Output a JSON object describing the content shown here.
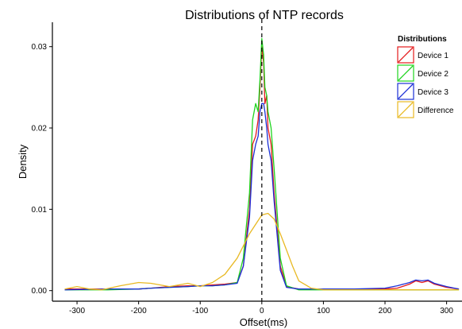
{
  "chart_data": {
    "type": "line",
    "title": "Distributions of NTP records",
    "xlabel": "Offset(ms)",
    "ylabel": "Density",
    "xlim": [
      -340,
      325
    ],
    "ylim": [
      -0.0013,
      0.033
    ],
    "x_ticks": [
      -300,
      -200,
      -100,
      0,
      100,
      200,
      300
    ],
    "y_ticks": [
      0.0,
      0.01,
      0.02,
      0.03
    ],
    "x_tick_labels": [
      "-300",
      "-200",
      "-100",
      "0",
      "100",
      "200",
      "300"
    ],
    "y_tick_labels": [
      "0.00",
      "0.01",
      "0.02",
      "0.03"
    ],
    "grid": false,
    "legend_position": "top-right",
    "legend_title": "Distributions",
    "reference_line": {
      "x": 0,
      "style": "dashed"
    },
    "series": [
      {
        "name": "Device 1",
        "color": "#e41a1c",
        "x": [
          -320,
          -250,
          -200,
          -180,
          -150,
          -120,
          -100,
          -80,
          -60,
          -40,
          -30,
          -20,
          -15,
          -10,
          -6,
          -3,
          0,
          3,
          5,
          8,
          10,
          15,
          20,
          30,
          40,
          60,
          100,
          150,
          200,
          220,
          240,
          250,
          260,
          270,
          280,
          300,
          320
        ],
        "y": [
          0.0002,
          0.0002,
          0.0002,
          0.0003,
          0.0005,
          0.0006,
          0.0006,
          0.0007,
          0.0008,
          0.001,
          0.003,
          0.01,
          0.018,
          0.019,
          0.021,
          0.025,
          0.03,
          0.028,
          0.023,
          0.024,
          0.02,
          0.018,
          0.012,
          0.003,
          0.0005,
          0.0002,
          0.0002,
          0.0002,
          0.0002,
          0.0003,
          0.0008,
          0.0012,
          0.001,
          0.0012,
          0.0008,
          0.0004,
          0.0002
        ]
      },
      {
        "name": "Device 2",
        "color": "#1ed41e",
        "x": [
          -320,
          -250,
          -200,
          -180,
          -150,
          -120,
          -100,
          -80,
          -60,
          -40,
          -30,
          -20,
          -15,
          -10,
          -6,
          -3,
          0,
          3,
          5,
          8,
          10,
          15,
          20,
          30,
          40,
          60,
          100,
          150,
          200,
          220,
          240,
          250,
          260,
          270,
          280,
          300,
          320
        ],
        "y": [
          0.0001,
          0.0001,
          0.0002,
          0.0003,
          0.0004,
          0.0005,
          0.0006,
          0.0006,
          0.0007,
          0.001,
          0.004,
          0.012,
          0.021,
          0.023,
          0.022,
          0.026,
          0.031,
          0.029,
          0.025,
          0.024,
          0.022,
          0.02,
          0.015,
          0.004,
          0.0006,
          0.0001,
          0.0001,
          0.0001,
          0.0001,
          0.0001,
          0.0001,
          0.0001,
          0.0001,
          0.0001,
          0.0001,
          0.0001,
          0.0001
        ]
      },
      {
        "name": "Device 3",
        "color": "#1c2fd6",
        "x": [
          -320,
          -250,
          -200,
          -180,
          -150,
          -120,
          -100,
          -80,
          -60,
          -40,
          -30,
          -20,
          -15,
          -10,
          -6,
          -3,
          0,
          3,
          5,
          8,
          10,
          15,
          20,
          30,
          40,
          60,
          100,
          150,
          200,
          220,
          240,
          250,
          260,
          270,
          280,
          300,
          320
        ],
        "y": [
          0.0001,
          0.0002,
          0.0002,
          0.0003,
          0.0004,
          0.0005,
          0.0006,
          0.0006,
          0.0007,
          0.0009,
          0.003,
          0.009,
          0.016,
          0.018,
          0.019,
          0.022,
          0.023,
          0.023,
          0.022,
          0.02,
          0.018,
          0.016,
          0.011,
          0.0025,
          0.0004,
          0.0002,
          0.0002,
          0.0002,
          0.0003,
          0.0006,
          0.001,
          0.0013,
          0.0012,
          0.0013,
          0.0009,
          0.0005,
          0.0002
        ]
      },
      {
        "name": "Difference",
        "color": "#e8b923",
        "x": [
          -320,
          -300,
          -280,
          -260,
          -230,
          -200,
          -180,
          -150,
          -120,
          -100,
          -80,
          -60,
          -40,
          -20,
          0,
          10,
          20,
          30,
          40,
          50,
          60,
          80,
          100,
          150,
          200,
          250,
          300,
          320
        ],
        "y": [
          0.0002,
          0.0005,
          0.0002,
          0.0001,
          0.0006,
          0.001,
          0.0009,
          0.0005,
          0.0009,
          0.0005,
          0.001,
          0.002,
          0.004,
          0.007,
          0.0093,
          0.0095,
          0.0088,
          0.007,
          0.005,
          0.003,
          0.0012,
          0.0003,
          0.0001,
          0.0001,
          0.0001,
          0.0001,
          0.0001,
          0.0001
        ]
      }
    ]
  }
}
